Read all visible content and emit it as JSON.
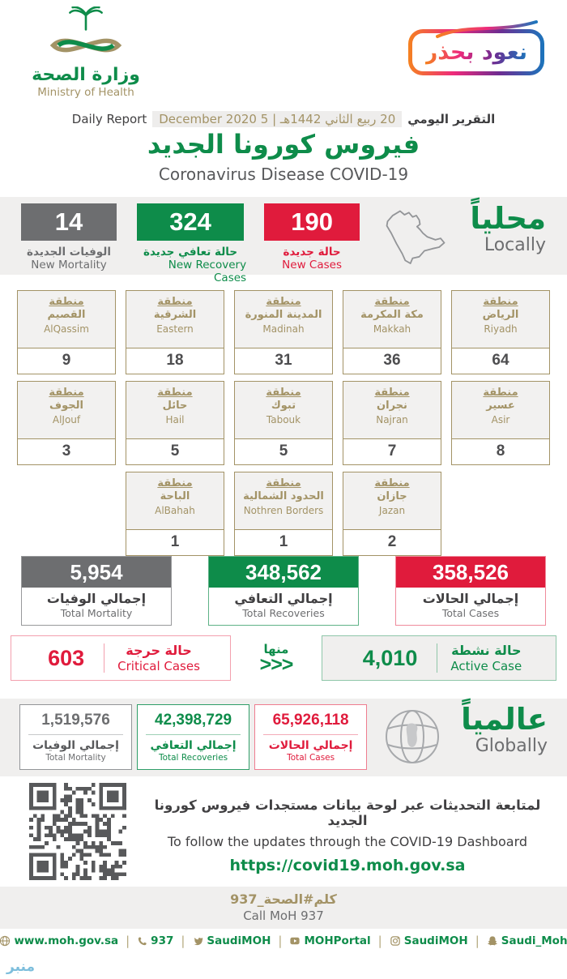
{
  "header": {
    "ministry_ar": "وزارة الصحة",
    "ministry_en": "Ministry of Health",
    "badge_label": "نعود بحذر",
    "report_label_en": "Daily Report",
    "date_en": "5 December 2020",
    "date_ar": "20 ربيع الثاني 1442هـ",
    "date_divider": "|",
    "report_label_ar": "التقرير اليومي",
    "title_ar": "فيروس كورونا الجديد",
    "title_en": "Coronavirus Disease COVID-19"
  },
  "locally": {
    "heading_ar": "محلياً",
    "heading_en": "Locally",
    "stats": [
      {
        "value": "190",
        "label_ar": "حالة جديدة",
        "label_en": "New Cases",
        "color": "#e01b3c"
      },
      {
        "value": "324",
        "label_ar": "حالة تعافي جديدة",
        "label_en": "New Recovery Cases",
        "color": "#0e8c4a"
      },
      {
        "value": "14",
        "label_ar": "الوفيات الجديدة",
        "label_en": "New Mortality",
        "color": "#6d6e70"
      }
    ]
  },
  "regions": {
    "prefix_ar": "منطقة",
    "rows": [
      [
        {
          "name_ar": "الرياض",
          "name_en": "Riyadh",
          "value": "64"
        },
        {
          "name_ar": "مكة المكرمة",
          "name_en": "Makkah",
          "value": "36"
        },
        {
          "name_ar": "المدينة المنورة",
          "name_en": "Madinah",
          "value": "31"
        },
        {
          "name_ar": "الشرقية",
          "name_en": "Eastern",
          "value": "18"
        },
        {
          "name_ar": "القصيم",
          "name_en": "AlQassim",
          "value": "9"
        }
      ],
      [
        {
          "name_ar": "عسير",
          "name_en": "Asir",
          "value": "8"
        },
        {
          "name_ar": "نجران",
          "name_en": "Najran",
          "value": "7"
        },
        {
          "name_ar": "تبوك",
          "name_en": "Tabouk",
          "value": "5"
        },
        {
          "name_ar": "حائل",
          "name_en": "Hail",
          "value": "5"
        },
        {
          "name_ar": "الجوف",
          "name_en": "AlJouf",
          "value": "3"
        }
      ],
      [
        {
          "name_ar": "جازان",
          "name_en": "Jazan",
          "value": "2"
        },
        {
          "name_ar": "الحدود الشمالية",
          "name_en": "Nothren Borders",
          "value": "1"
        },
        {
          "name_ar": "الباحة",
          "name_en": "AlBahah",
          "value": "1"
        }
      ]
    ]
  },
  "totals": [
    {
      "value": "358,526",
      "label_ar": "إجمالي الحالات",
      "label_en": "Total Cases",
      "color": "#e01b3c"
    },
    {
      "value": "348,562",
      "label_ar": "إجمالي التعافي",
      "label_en": "Total Recoveries",
      "color": "#0e8c4a"
    },
    {
      "value": "5,954",
      "label_ar": "إجمالي الوفيات",
      "label_en": "Total Mortality",
      "color": "#6d6e70"
    }
  ],
  "breakdown": {
    "active": {
      "value": "4,010",
      "label_ar": "حالة نشطة",
      "label_en": "Active Case"
    },
    "of_which_ar": "منها",
    "chevrons": "<<<",
    "critical": {
      "value": "603",
      "label_ar": "حالة حرجة",
      "label_en": "Critical Cases"
    }
  },
  "globally": {
    "heading_ar": "عالمياً",
    "heading_en": "Globally",
    "stats": [
      {
        "value": "65,926,118",
        "label_ar": "إجمالي الحالات",
        "label_en": "Total Cases",
        "color": "#e01b3c"
      },
      {
        "value": "42,398,729",
        "label_ar": "إجمالي التعافي",
        "label_en": "Total Recoveries",
        "color": "#0e8c4a"
      },
      {
        "value": "1,519,576",
        "label_ar": "إجمالي الوفيات",
        "label_en": "Total Mortality",
        "color": "#6d6e70"
      }
    ]
  },
  "dashboard": {
    "text_ar": "لمتابعة التحديثات عبر لوحة بيانات مستجدات فيروس كورونا الجديد",
    "text_en": "To follow the updates through the COVID-19 Dashboard",
    "url": "https://covid19.moh.gov.sa"
  },
  "call": {
    "ar": "كلم#الصحة_937",
    "en": "Call MoH 937"
  },
  "footer": {
    "links": [
      {
        "icon": "globe-icon",
        "label": "www.moh.gov.sa"
      },
      {
        "icon": "phone-icon",
        "label": "937"
      },
      {
        "icon": "twitter-icon",
        "label": "SaudiMOH"
      },
      {
        "icon": "youtube-icon",
        "label": "MOHPortal"
      },
      {
        "icon": "instagram-icon",
        "label": "SaudiMOH"
      },
      {
        "icon": "snapchat-icon",
        "label": "Saudi_Moh"
      }
    ]
  },
  "watermark": "منبر",
  "colors": {
    "green": "#0e8c4a",
    "red": "#e01b3c",
    "gray": "#6d6e70",
    "tan": "#a39366",
    "band": "#f0efee"
  }
}
